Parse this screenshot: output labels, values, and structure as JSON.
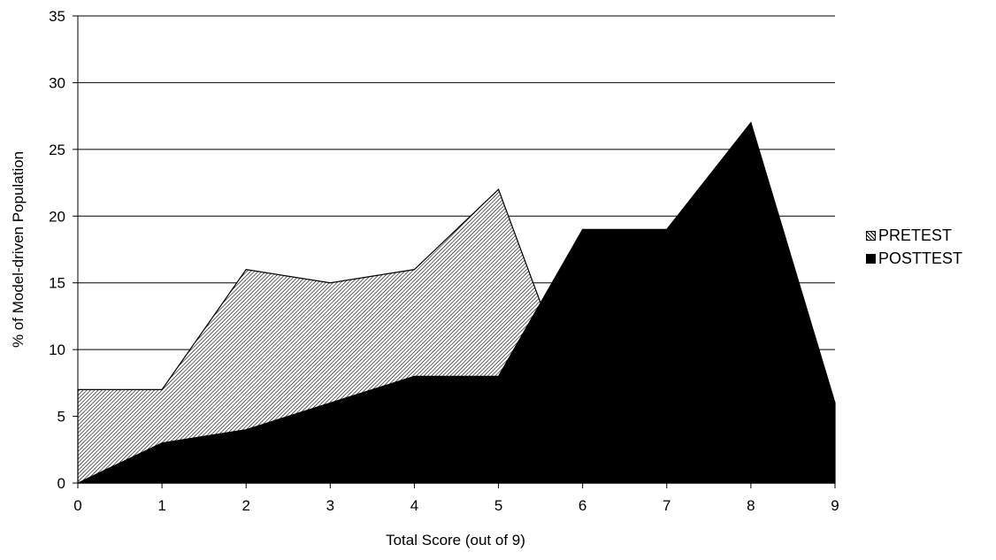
{
  "chart_data": {
    "type": "area",
    "xlabel": "Total Score (out of 9)",
    "ylabel": "% of Model-driven Population",
    "x": [
      0,
      1,
      2,
      3,
      4,
      5,
      6,
      7,
      8,
      9
    ],
    "ylim": [
      0,
      35
    ],
    "yticks": [
      0,
      5,
      10,
      15,
      20,
      25,
      30,
      35
    ],
    "grid": true,
    "legend_position": "right",
    "series": [
      {
        "name": "PRETEST",
        "values": [
          7,
          7,
          16,
          15,
          16,
          22,
          5,
          3,
          0,
          0
        ],
        "fill": "hatched",
        "color": "#b0b0b0"
      },
      {
        "name": "POSTTEST",
        "values": [
          0,
          3,
          4,
          6,
          8,
          8,
          19,
          19,
          27,
          6
        ],
        "fill": "solid",
        "color": "#000000"
      }
    ]
  }
}
